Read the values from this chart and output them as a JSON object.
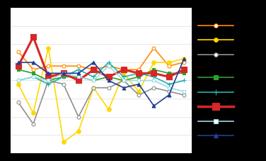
{
  "x": [
    1,
    2,
    3,
    4,
    5,
    6,
    7,
    8,
    9,
    10,
    11,
    12
  ],
  "series_data": [
    [
      13,
      8,
      9,
      9,
      9,
      8,
      9,
      8,
      8,
      14,
      9,
      10
    ],
    [
      4,
      -4,
      14,
      -12,
      -9,
      3,
      -3,
      7,
      2,
      10,
      10,
      11
    ],
    [
      -1,
      -7,
      5,
      4,
      -5,
      3,
      3,
      5,
      1,
      3,
      2,
      1
    ],
    [
      8,
      7,
      5,
      6,
      6,
      5,
      6,
      5,
      6,
      8,
      7,
      7
    ],
    [
      5,
      6,
      4,
      6,
      8,
      6,
      10,
      6,
      7,
      6,
      4,
      5
    ],
    [
      9,
      17,
      6,
      7,
      5,
      8,
      6,
      8,
      7,
      7,
      6,
      8
    ],
    [
      5,
      6,
      5,
      7,
      6,
      5,
      9,
      5,
      5,
      5,
      3,
      2
    ],
    [
      10,
      10,
      7,
      7,
      7,
      10,
      5,
      3,
      4,
      -2,
      1,
      11
    ]
  ],
  "styles": [
    {
      "color": "#FF8C00",
      "marker": "o",
      "mfc": "white",
      "mec": "#FF8C00",
      "lw": 1.2,
      "ms": 3.5
    },
    {
      "color": "#FFD700",
      "marker": "o",
      "mfc": "#FFD700",
      "mec": "#FFD700",
      "lw": 1.2,
      "ms": 4.0
    },
    {
      "color": "#909090",
      "marker": "o",
      "mfc": "white",
      "mec": "#909090",
      "lw": 1.2,
      "ms": 3.5
    },
    {
      "color": "#2CA02C",
      "marker": "s",
      "mfc": "#2CA02C",
      "mec": "#2CA02C",
      "lw": 1.2,
      "ms": 3.5
    },
    {
      "color": "#20B2AA",
      "marker": "+",
      "mfc": "#20B2AA",
      "mec": "#20B2AA",
      "lw": 1.2,
      "ms": 5.0
    },
    {
      "color": "#D62728",
      "marker": "s",
      "mfc": "#D62728",
      "mec": "#D62728",
      "lw": 2.2,
      "ms": 6.0
    },
    {
      "color": "#9EDAE5",
      "marker": "s",
      "mfc": "white",
      "mec": "#9EDAE5",
      "lw": 1.2,
      "ms": 3.5
    },
    {
      "color": "#1F3F8F",
      "marker": "^",
      "mfc": "#1F3F8F",
      "mec": "#1F3F8F",
      "lw": 1.2,
      "ms": 3.5
    }
  ],
  "legend_names": [
    "",
    "",
    "",
    "",
    "",
    "",
    "",
    ""
  ],
  "ylim": [
    -15,
    25
  ],
  "ytick_positions": [
    -10,
    -5,
    0,
    5,
    10,
    15,
    20
  ],
  "grid_color": "#DDDDDD",
  "bg_color": "#FFFFFF",
  "fig_bg": "#000000",
  "legend_bg": "#000000"
}
